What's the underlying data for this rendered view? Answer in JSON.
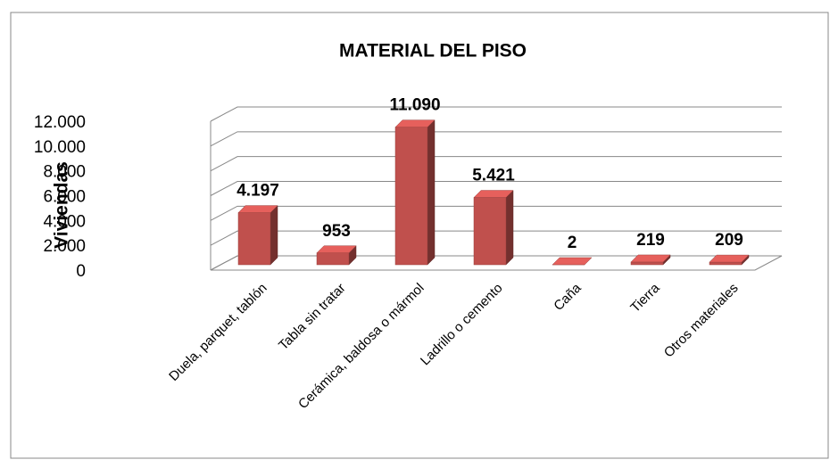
{
  "chart_data": {
    "type": "bar3d",
    "title": "MATERIAL DEL PISO",
    "y_label": "Viviendas",
    "categories": [
      "Duela, parquet, tablón",
      "Tabla sin tratar",
      "Cerámica, baldosa o mármol",
      "Ladrillo o cemento",
      "Caña",
      "Tierra",
      "Otros materiales"
    ],
    "values": [
      4197,
      953,
      11090,
      5421,
      2,
      219,
      209
    ],
    "value_labels": [
      "4.197",
      "953",
      "11.090",
      "5.421",
      "2",
      "219",
      "209"
    ],
    "color": "#c0504d",
    "ylim": [
      0,
      12000
    ],
    "yticks": [
      0,
      {
        "value": 2000,
        "label": "2.000"
      },
      {
        "value": 4000,
        "label": "4.000"
      },
      {
        "value": 6000,
        "label": "6.000"
      },
      {
        "value": 8000,
        "label": "8.000"
      },
      {
        "value": 10000,
        "label": "10.000"
      },
      {
        "value": 12000,
        "label": "12.000"
      }
    ],
    "grid": true
  }
}
